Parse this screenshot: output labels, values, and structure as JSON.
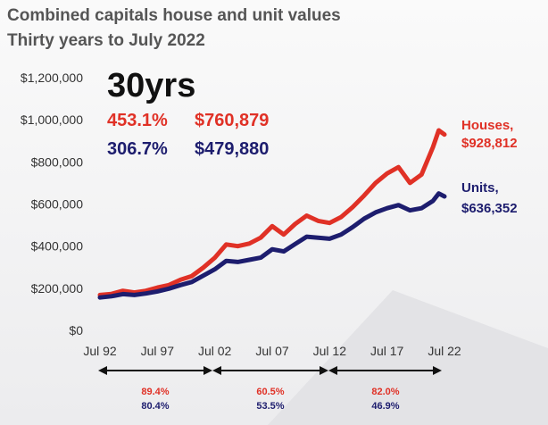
{
  "title_line1": "Combined capitals house and unit values",
  "title_line2": "Thirty years to July 2022",
  "headline": "30yrs",
  "house_growth_pct": "453.1%",
  "house_growth_value": "$760,879",
  "unit_growth_pct": "306.7%",
  "unit_growth_value": "$479,880",
  "colors": {
    "houses": "#e03126",
    "units": "#1d1d6e",
    "text": "#333333"
  },
  "periods": [
    {
      "range": "Jul 92 - Jul 02",
      "houses": "89.4%",
      "units": "80.4%"
    },
    {
      "range": "Jul 02 - Jul 12",
      "houses": "60.5%",
      "units": "53.5%"
    },
    {
      "range": "Jul 12 - Jul 22",
      "houses": "82.0%",
      "units": "46.9%"
    }
  ],
  "chart_data": {
    "type": "line",
    "title": "Combined capitals house and unit values",
    "subtitle": "Thirty years to July 2022",
    "xlabel": "",
    "ylabel": "",
    "x_ticks": [
      "Jul 92",
      "Jul 97",
      "Jul 02",
      "Jul 07",
      "Jul 12",
      "Jul 17",
      "Jul 22"
    ],
    "y_ticks": [
      "$0",
      "$200,000",
      "$400,000",
      "$600,000",
      "$800,000",
      "$1,000,000",
      "$1,200,000"
    ],
    "xlim": [
      1992.5,
      2022.5
    ],
    "ylim": [
      0,
      1200000
    ],
    "series": [
      {
        "name": "Houses",
        "end_label": "Houses,",
        "end_value": "$928,812",
        "points": [
          [
            1992.5,
            168000
          ],
          [
            1993.5,
            173000
          ],
          [
            1994.5,
            188000
          ],
          [
            1995.5,
            180000
          ],
          [
            1996.5,
            188000
          ],
          [
            1997.5,
            203000
          ],
          [
            1998.5,
            215000
          ],
          [
            1999.5,
            240000
          ],
          [
            2000.5,
            258000
          ],
          [
            2001.5,
            298000
          ],
          [
            2002.5,
            345000
          ],
          [
            2003.5,
            408000
          ],
          [
            2004.5,
            400000
          ],
          [
            2005.5,
            412000
          ],
          [
            2006.5,
            440000
          ],
          [
            2007.5,
            495000
          ],
          [
            2008.5,
            455000
          ],
          [
            2009.5,
            505000
          ],
          [
            2010.5,
            545000
          ],
          [
            2011.5,
            520000
          ],
          [
            2012.5,
            510000
          ],
          [
            2013.5,
            538000
          ],
          [
            2014.5,
            585000
          ],
          [
            2015.5,
            640000
          ],
          [
            2016.5,
            700000
          ],
          [
            2017.5,
            745000
          ],
          [
            2018.5,
            775000
          ],
          [
            2019.5,
            700000
          ],
          [
            2020.5,
            740000
          ],
          [
            2021.5,
            870000
          ],
          [
            2022.0,
            950000
          ],
          [
            2022.5,
            930000
          ]
        ]
      },
      {
        "name": "Units",
        "end_label": "Units,",
        "end_value": "$636,352",
        "points": [
          [
            1992.5,
            156000
          ],
          [
            1993.5,
            162000
          ],
          [
            1994.5,
            172000
          ],
          [
            1995.5,
            168000
          ],
          [
            1996.5,
            175000
          ],
          [
            1997.5,
            185000
          ],
          [
            1998.5,
            198000
          ],
          [
            1999.5,
            215000
          ],
          [
            2000.5,
            230000
          ],
          [
            2001.5,
            260000
          ],
          [
            2002.5,
            290000
          ],
          [
            2003.5,
            330000
          ],
          [
            2004.5,
            325000
          ],
          [
            2005.5,
            335000
          ],
          [
            2006.5,
            345000
          ],
          [
            2007.5,
            385000
          ],
          [
            2008.5,
            375000
          ],
          [
            2009.5,
            410000
          ],
          [
            2010.5,
            445000
          ],
          [
            2011.5,
            440000
          ],
          [
            2012.5,
            435000
          ],
          [
            2013.5,
            455000
          ],
          [
            2014.5,
            490000
          ],
          [
            2015.5,
            530000
          ],
          [
            2016.5,
            560000
          ],
          [
            2017.5,
            580000
          ],
          [
            2018.5,
            595000
          ],
          [
            2019.5,
            570000
          ],
          [
            2020.5,
            580000
          ],
          [
            2021.5,
            615000
          ],
          [
            2022.0,
            650000
          ],
          [
            2022.5,
            636000
          ]
        ]
      }
    ],
    "annotations": [
      "30yrs",
      "453.1%",
      "$760,879",
      "306.7%",
      "$479,880"
    ]
  }
}
